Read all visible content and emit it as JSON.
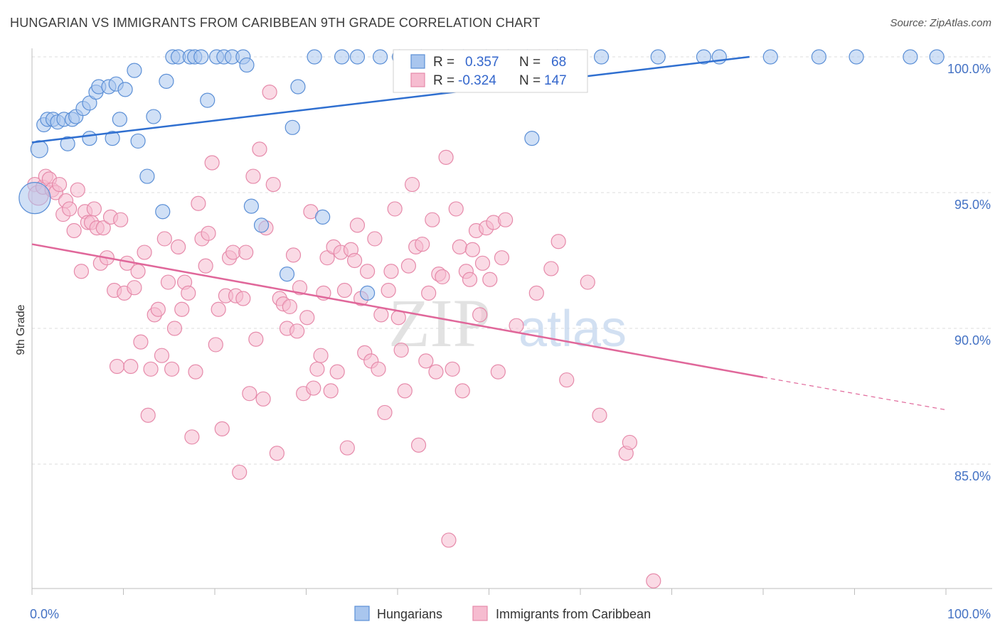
{
  "title": "HUNGARIAN VS IMMIGRANTS FROM CARIBBEAN 9TH GRADE CORRELATION CHART",
  "source": "Source: ZipAtlas.com",
  "watermark": {
    "zip": "ZIP",
    "atlas": "atlas"
  },
  "colors": {
    "blue_fill": "#a9c6ee",
    "blue_stroke": "#5b8fd6",
    "blue_line": "#2f6fd0",
    "pink_fill": "#f6bcd0",
    "pink_stroke": "#e68aaa",
    "pink_line": "#e0679a",
    "tick_label": "#4472c4",
    "grid": "#dddddd"
  },
  "legend": {
    "rows": [
      {
        "r_label": "R =",
        "r_value": "0.357",
        "n_label": "N =",
        "n_value": "68",
        "series": "blue"
      },
      {
        "r_label": "R =",
        "r_value": "-0.324",
        "n_label": "N =",
        "n_value": "147",
        "series": "pink"
      }
    ]
  },
  "chart_data": {
    "type": "scatter",
    "title": "HUNGARIAN VS IMMIGRANTS FROM CARIBBEAN 9TH GRADE CORRELATION CHART",
    "xlabel": "",
    "ylabel": "9th Grade",
    "xlim": [
      0,
      100
    ],
    "ylim": [
      80.5,
      100.8
    ],
    "x_tick_labels": [
      "0.0%",
      "100.0%"
    ],
    "y_ticks": [
      85,
      90,
      95,
      100
    ],
    "y_tick_labels": [
      "85.0%",
      "90.0%",
      "95.0%",
      "100.0%"
    ],
    "grid": true,
    "legend_position": "bottom",
    "series": [
      {
        "name": "Hungarians",
        "color": "blue",
        "R": 0.357,
        "N": 68,
        "trend": {
          "x": [
            0,
            78.5
          ],
          "y": [
            96.85,
            100.0
          ]
        },
        "points": [
          [
            0.3,
            94.8,
            22
          ],
          [
            0.8,
            96.6,
            12
          ],
          [
            1.3,
            97.5,
            10
          ],
          [
            1.7,
            97.7,
            10
          ],
          [
            2.3,
            97.7,
            10
          ],
          [
            2.8,
            97.6,
            10
          ],
          [
            3.5,
            97.7,
            10
          ],
          [
            3.9,
            96.8,
            10
          ],
          [
            4.4,
            97.7,
            10
          ],
          [
            4.8,
            97.8,
            10
          ],
          [
            5.6,
            98.1,
            10
          ],
          [
            6.3,
            98.3,
            10
          ],
          [
            6.3,
            97.0,
            10
          ],
          [
            7.0,
            98.7,
            10
          ],
          [
            7.3,
            98.9,
            10
          ],
          [
            8.4,
            98.9,
            10
          ],
          [
            8.8,
            97.0,
            10
          ],
          [
            9.2,
            99.0,
            10
          ],
          [
            9.6,
            97.7,
            10
          ],
          [
            10.2,
            98.8,
            10
          ],
          [
            11.2,
            99.5,
            10
          ],
          [
            11.6,
            96.9,
            10
          ],
          [
            12.6,
            95.6,
            10
          ],
          [
            13.3,
            97.8,
            10
          ],
          [
            14.3,
            94.3,
            10
          ],
          [
            14.7,
            99.1,
            10
          ],
          [
            15.4,
            100.0,
            10
          ],
          [
            16.0,
            100.0,
            10
          ],
          [
            17.3,
            100.0,
            10
          ],
          [
            17.8,
            100.0,
            10
          ],
          [
            18.5,
            100.0,
            10
          ],
          [
            19.2,
            98.4,
            10
          ],
          [
            20.2,
            100.0,
            10
          ],
          [
            21.0,
            100.0,
            10
          ],
          [
            21.9,
            100.0,
            10
          ],
          [
            23.1,
            100.0,
            10
          ],
          [
            23.5,
            99.7,
            10
          ],
          [
            24.0,
            94.5,
            10
          ],
          [
            25.1,
            93.8,
            10
          ],
          [
            27.9,
            92.0,
            10
          ],
          [
            28.5,
            97.4,
            10
          ],
          [
            29.1,
            98.9,
            10
          ],
          [
            30.9,
            100.0,
            10
          ],
          [
            31.8,
            94.1,
            10
          ],
          [
            33.9,
            100.0,
            10
          ],
          [
            35.6,
            100.0,
            10
          ],
          [
            36.7,
            91.3,
            10
          ],
          [
            38.1,
            100.0,
            10
          ],
          [
            40.2,
            100.0,
            10
          ],
          [
            41.2,
            99.3,
            10
          ],
          [
            42.6,
            100.0,
            10
          ],
          [
            44.9,
            100.0,
            10
          ],
          [
            47.2,
            100.0,
            10
          ],
          [
            49.7,
            100.0,
            10
          ],
          [
            52.1,
            100.0,
            10
          ],
          [
            54.2,
            100.0,
            10
          ],
          [
            54.7,
            97.0,
            10
          ],
          [
            57.5,
            100.0,
            10
          ],
          [
            59.6,
            100.0,
            10
          ],
          [
            62.3,
            100.0,
            10
          ],
          [
            68.5,
            100.0,
            10
          ],
          [
            73.5,
            100.0,
            10
          ],
          [
            75.2,
            100.0,
            10
          ],
          [
            80.8,
            100.0,
            10
          ],
          [
            86.1,
            100.0,
            10
          ],
          [
            90.2,
            100.0,
            10
          ],
          [
            96.1,
            100.0,
            10
          ],
          [
            99.0,
            100.0,
            10
          ]
        ]
      },
      {
        "name": "Immigrants from Caribbean",
        "color": "pink",
        "R": -0.324,
        "N": 147,
        "trend": {
          "x": [
            0,
            80
          ],
          "y": [
            93.1,
            88.2
          ]
        },
        "trend_dashed": {
          "x": [
            80,
            100
          ],
          "y": [
            88.2,
            87.0
          ]
        },
        "points": [
          [
            0.3,
            95.3,
            10
          ],
          [
            0.7,
            94.9,
            14
          ],
          [
            1.2,
            95.2,
            10
          ],
          [
            1.5,
            95.6,
            10
          ],
          [
            1.9,
            95.5,
            10
          ],
          [
            2.2,
            95.1,
            10
          ],
          [
            2.6,
            95.0,
            10
          ],
          [
            3.0,
            95.3,
            10
          ],
          [
            3.4,
            94.2,
            10
          ],
          [
            3.7,
            94.7,
            10
          ],
          [
            4.1,
            94.4,
            10
          ],
          [
            4.6,
            93.6,
            10
          ],
          [
            5.0,
            95.1,
            10
          ],
          [
            5.4,
            92.1,
            10
          ],
          [
            5.8,
            94.3,
            10
          ],
          [
            6.1,
            93.9,
            10
          ],
          [
            6.5,
            93.9,
            10
          ],
          [
            6.8,
            94.4,
            10
          ],
          [
            7.1,
            93.7,
            10
          ],
          [
            7.5,
            92.4,
            10
          ],
          [
            7.8,
            93.7,
            10
          ],
          [
            8.2,
            92.6,
            10
          ],
          [
            8.6,
            94.1,
            10
          ],
          [
            9.0,
            91.4,
            10
          ],
          [
            9.3,
            88.6,
            10
          ],
          [
            9.7,
            94.0,
            10
          ],
          [
            10.1,
            91.3,
            10
          ],
          [
            10.4,
            92.4,
            10
          ],
          [
            10.8,
            88.6,
            10
          ],
          [
            11.2,
            91.5,
            10
          ],
          [
            11.6,
            92.1,
            10
          ],
          [
            11.9,
            89.5,
            10
          ],
          [
            12.3,
            92.8,
            10
          ],
          [
            12.7,
            86.8,
            10
          ],
          [
            13.0,
            88.5,
            10
          ],
          [
            13.4,
            90.5,
            10
          ],
          [
            13.8,
            90.7,
            10
          ],
          [
            14.2,
            89.0,
            10
          ],
          [
            14.5,
            93.3,
            10
          ],
          [
            14.9,
            91.7,
            10
          ],
          [
            15.3,
            88.5,
            10
          ],
          [
            15.6,
            90.0,
            10
          ],
          [
            16.0,
            93.0,
            10
          ],
          [
            16.4,
            90.7,
            10
          ],
          [
            16.7,
            91.7,
            10
          ],
          [
            17.1,
            91.3,
            10
          ],
          [
            17.5,
            86.0,
            10
          ],
          [
            17.9,
            88.4,
            10
          ],
          [
            18.2,
            94.6,
            10
          ],
          [
            18.6,
            93.3,
            10
          ],
          [
            19.0,
            92.3,
            10
          ],
          [
            19.3,
            93.5,
            10
          ],
          [
            19.7,
            96.1,
            10
          ],
          [
            20.1,
            89.4,
            10
          ],
          [
            20.4,
            90.7,
            10
          ],
          [
            20.8,
            86.3,
            10
          ],
          [
            21.2,
            91.2,
            10
          ],
          [
            21.6,
            92.6,
            10
          ],
          [
            22.0,
            92.8,
            10
          ],
          [
            22.3,
            91.2,
            10
          ],
          [
            22.7,
            84.7,
            10
          ],
          [
            23.1,
            91.1,
            10
          ],
          [
            23.4,
            92.8,
            10
          ],
          [
            23.8,
            87.6,
            10
          ],
          [
            24.2,
            95.6,
            10
          ],
          [
            24.5,
            89.6,
            10
          ],
          [
            24.9,
            96.6,
            10
          ],
          [
            25.3,
            87.4,
            10
          ],
          [
            25.6,
            93.7,
            10
          ],
          [
            26.0,
            98.7,
            10
          ],
          [
            26.4,
            95.3,
            10
          ],
          [
            26.8,
            85.4,
            10
          ],
          [
            27.1,
            91.1,
            10
          ],
          [
            27.5,
            90.9,
            10
          ],
          [
            27.9,
            90.0,
            10
          ],
          [
            28.2,
            90.8,
            10
          ],
          [
            28.6,
            92.7,
            10
          ],
          [
            29.0,
            89.9,
            10
          ],
          [
            29.3,
            91.5,
            10
          ],
          [
            29.7,
            87.6,
            10
          ],
          [
            30.1,
            90.4,
            10
          ],
          [
            30.5,
            94.3,
            10
          ],
          [
            30.8,
            87.8,
            10
          ],
          [
            31.2,
            88.5,
            10
          ],
          [
            31.6,
            89.0,
            10
          ],
          [
            31.9,
            91.3,
            10
          ],
          [
            32.3,
            92.6,
            10
          ],
          [
            32.7,
            87.7,
            10
          ],
          [
            33.0,
            93.0,
            10
          ],
          [
            33.4,
            88.4,
            10
          ],
          [
            33.8,
            92.8,
            10
          ],
          [
            34.2,
            91.4,
            10
          ],
          [
            34.5,
            85.6,
            10
          ],
          [
            34.9,
            92.9,
            10
          ],
          [
            35.3,
            92.5,
            10
          ],
          [
            35.6,
            93.8,
            10
          ],
          [
            36.0,
            91.1,
            10
          ],
          [
            36.4,
            89.1,
            10
          ],
          [
            36.7,
            92.1,
            10
          ],
          [
            37.1,
            88.8,
            10
          ],
          [
            37.5,
            93.3,
            10
          ],
          [
            37.9,
            88.5,
            10
          ],
          [
            38.2,
            90.5,
            10
          ],
          [
            38.6,
            86.9,
            10
          ],
          [
            39.0,
            91.4,
            10
          ],
          [
            39.3,
            92.1,
            10
          ],
          [
            39.7,
            94.4,
            10
          ],
          [
            40.1,
            90.4,
            10
          ],
          [
            40.4,
            89.2,
            10
          ],
          [
            40.8,
            87.7,
            10
          ],
          [
            41.2,
            92.3,
            10
          ],
          [
            41.6,
            95.3,
            10
          ],
          [
            42.0,
            93.0,
            10
          ],
          [
            42.3,
            85.7,
            10
          ],
          [
            42.7,
            93.1,
            10
          ],
          [
            43.1,
            88.8,
            10
          ],
          [
            43.4,
            91.3,
            10
          ],
          [
            43.8,
            94.0,
            10
          ],
          [
            44.2,
            88.4,
            10
          ],
          [
            44.5,
            92.0,
            10
          ],
          [
            44.9,
            91.9,
            10
          ],
          [
            45.3,
            96.3,
            10
          ],
          [
            45.6,
            82.2,
            10
          ],
          [
            46.0,
            88.5,
            10
          ],
          [
            46.4,
            94.4,
            10
          ],
          [
            46.8,
            93.0,
            10
          ],
          [
            47.1,
            87.7,
            10
          ],
          [
            47.5,
            92.1,
            10
          ],
          [
            47.9,
            91.8,
            10
          ],
          [
            48.2,
            92.9,
            10
          ],
          [
            48.6,
            93.6,
            10
          ],
          [
            49.0,
            90.5,
            10
          ],
          [
            49.3,
            92.4,
            10
          ],
          [
            49.7,
            93.7,
            10
          ],
          [
            50.1,
            91.8,
            10
          ],
          [
            50.5,
            93.9,
            10
          ],
          [
            51.0,
            88.4,
            10
          ],
          [
            51.4,
            92.6,
            10
          ],
          [
            51.8,
            94.0,
            10
          ],
          [
            53.0,
            90.1,
            10
          ],
          [
            55.2,
            91.3,
            10
          ],
          [
            55.5,
            100.0,
            10
          ],
          [
            56.8,
            92.2,
            10
          ],
          [
            57.6,
            93.2,
            10
          ],
          [
            58.5,
            88.1,
            10
          ],
          [
            60.8,
            91.7,
            10
          ],
          [
            62.1,
            86.8,
            10
          ],
          [
            65.0,
            85.4,
            10
          ],
          [
            65.4,
            85.8,
            10
          ],
          [
            68.0,
            80.7,
            10
          ]
        ]
      }
    ]
  },
  "bottom_legend": {
    "items": [
      {
        "label": "Hungarians",
        "color": "blue"
      },
      {
        "label": "Immigrants from Caribbean",
        "color": "pink"
      }
    ]
  }
}
